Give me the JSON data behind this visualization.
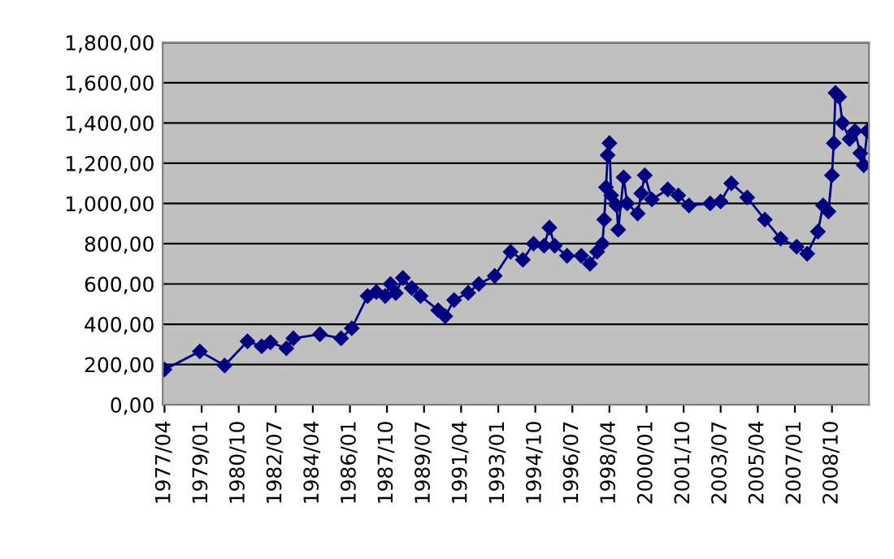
{
  "chart_data": {
    "type": "line",
    "marker": "diamond",
    "line_style": "solid",
    "grid": "y",
    "x": [
      "1977-04",
      "1978-12",
      "1980-02",
      "1981-03",
      "1981-11",
      "1982-04",
      "1983-01",
      "1983-05",
      "1984-08",
      "1985-08",
      "1986-02",
      "1986-11",
      "1987-04",
      "1987-09",
      "1987-12",
      "1988-03",
      "1988-07",
      "1988-12",
      "1989-05",
      "1990-03",
      "1990-07",
      "1990-12",
      "1991-08",
      "1992-02",
      "1992-11",
      "1993-08",
      "1994-03",
      "1994-09",
      "1995-03",
      "1995-06",
      "1995-09",
      "1996-04",
      "1996-12",
      "1997-05",
      "1997-09",
      "1997-12",
      "1998-01",
      "1998-02",
      "1998-03",
      "1998-04",
      "1998-05",
      "1998-08",
      "1998-09",
      "1998-12",
      "1999-02",
      "1999-08",
      "1999-10",
      "1999-12",
      "2000-04",
      "2001-01",
      "2001-07",
      "2002-01",
      "2003-01",
      "2003-07",
      "2004-01",
      "2004-10",
      "2005-08",
      "2006-05",
      "2007-02",
      "2007-08",
      "2008-02",
      "2008-05",
      "2008-08",
      "2008-10",
      "2008-11",
      "2008-12",
      "2009-02",
      "2009-04",
      "2009-08",
      "2009-11",
      "2010-02",
      "2010-04",
      "2010-06"
    ],
    "series": [
      {
        "color": "#000080",
        "values": [
          175,
          265,
          195,
          315,
          290,
          310,
          280,
          330,
          350,
          330,
          380,
          540,
          560,
          540,
          600,
          555,
          630,
          580,
          540,
          470,
          440,
          520,
          556,
          600,
          640,
          760,
          720,
          800,
          790,
          880,
          790,
          740,
          740,
          700,
          760,
          800,
          920,
          1080,
          1240,
          1300,
          1040,
          990,
          870,
          1130,
          1000,
          950,
          1050,
          1140,
          1020,
          1070,
          1040,
          990,
          1000,
          1010,
          1100,
          1030,
          920,
          825,
          785,
          750,
          860,
          990,
          960,
          1140,
          1300,
          1550,
          1530,
          1400,
          1320,
          1360,
          1250,
          1190,
          1360
        ]
      }
    ],
    "xlim": [
      "1977-03",
      "2010-07"
    ],
    "xticks": [
      {
        "value": "1977-04",
        "label": "1977/04"
      },
      {
        "value": "1979-01",
        "label": "1979/01"
      },
      {
        "value": "1980-10",
        "label": "1980/10"
      },
      {
        "value": "1982-07",
        "label": "1982/07"
      },
      {
        "value": "1984-04",
        "label": "1984/04"
      },
      {
        "value": "1986-01",
        "label": "1986/01"
      },
      {
        "value": "1987-10",
        "label": "1987/10"
      },
      {
        "value": "1989-07",
        "label": "1989/07"
      },
      {
        "value": "1991-04",
        "label": "1991/04"
      },
      {
        "value": "1993-01",
        "label": "1993/01"
      },
      {
        "value": "1994-10",
        "label": "1994/10"
      },
      {
        "value": "1996-07",
        "label": "1996/07"
      },
      {
        "value": "1998-04",
        "label": "1998/04"
      },
      {
        "value": "2000-01",
        "label": "2000/01"
      },
      {
        "value": "2001-10",
        "label": "2001/10"
      },
      {
        "value": "2003-07",
        "label": "2003/07"
      },
      {
        "value": "2005-04",
        "label": "2005/04"
      },
      {
        "value": "2007-01",
        "label": "2007/01"
      },
      {
        "value": "2008-10",
        "label": "2008/10"
      }
    ],
    "ylim": [
      0,
      1800
    ],
    "yticks": [
      {
        "value": 0,
        "label": "0,00"
      },
      {
        "value": 200,
        "label": "200,00"
      },
      {
        "value": 400,
        "label": "400,00"
      },
      {
        "value": 600,
        "label": "600,00"
      },
      {
        "value": 800,
        "label": "800,00"
      },
      {
        "value": 1000,
        "label": "1,000,00"
      },
      {
        "value": 1200,
        "label": "1,200,00"
      },
      {
        "value": 1400,
        "label": "1,400,00"
      },
      {
        "value": 1600,
        "label": "1,600,00"
      },
      {
        "value": 1800,
        "label": "1,800,00"
      }
    ]
  }
}
